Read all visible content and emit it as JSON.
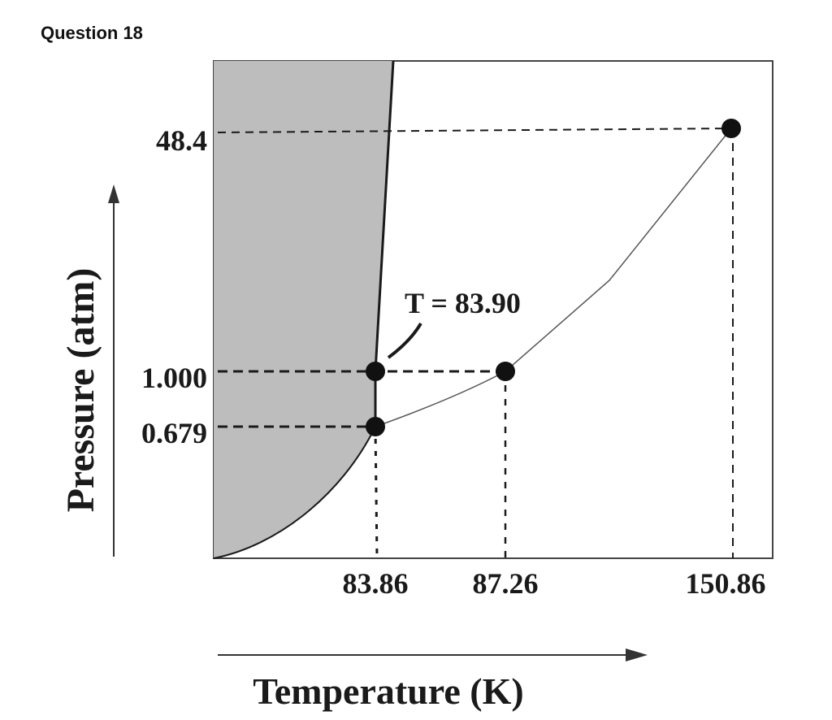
{
  "question_title": "Question 18",
  "diagram": {
    "type": "phase-diagram",
    "x_label": "Temperature (K)",
    "y_label": "Pressure (atm)",
    "x_ticks": [
      "83.86",
      "87.26",
      "150.86"
    ],
    "y_ticks": [
      "48.4",
      "1.000",
      "0.679"
    ],
    "annotation": "T = 83.90",
    "points": [
      {
        "name": "triple-point",
        "T": "83.86",
        "P": "0.679"
      },
      {
        "name": "normal-melting-point",
        "T": "83.90",
        "P": "1.000"
      },
      {
        "name": "normal-boiling-point",
        "T": "87.26",
        "P": "1.000"
      },
      {
        "name": "critical-point",
        "T": "150.86",
        "P": "48.4"
      }
    ],
    "colors": {
      "solid_region": "#bdbdbd",
      "curve": "#1a1a1a",
      "frame": "#444444"
    }
  }
}
